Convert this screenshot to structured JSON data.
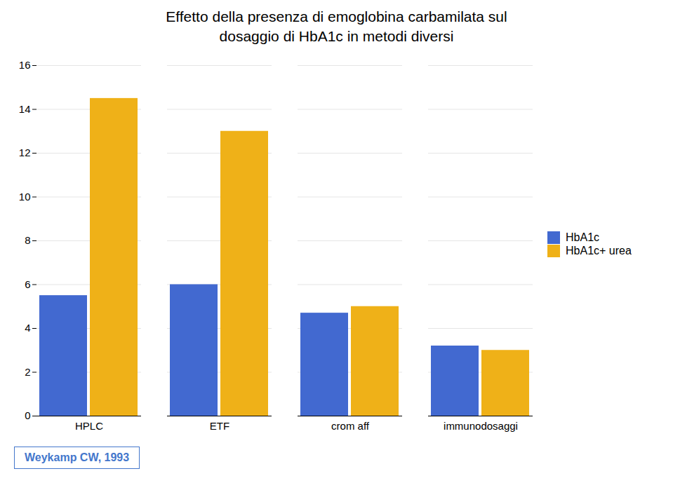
{
  "chart_data": {
    "type": "bar",
    "title": "Effetto della presenza di emoglobina carbamilata sul\ndosaggio di HbA1c in metodi diversi",
    "categories": [
      "HPLC",
      "ETF",
      "crom aff",
      "immunodosaggi"
    ],
    "series": [
      {
        "name": "HbA1c",
        "values": [
          5.5,
          6.0,
          4.7,
          3.2
        ]
      },
      {
        "name": "HbA1c+ urea",
        "values": [
          14.5,
          13.0,
          5.0,
          3.0
        ]
      }
    ],
    "ylim": [
      0,
      16
    ],
    "yticks": [
      0,
      2,
      4,
      6,
      8,
      10,
      12,
      14,
      16
    ],
    "grid": true,
    "legend": "right",
    "annotations": [
      "Weykamp CW, 1993"
    ]
  }
}
